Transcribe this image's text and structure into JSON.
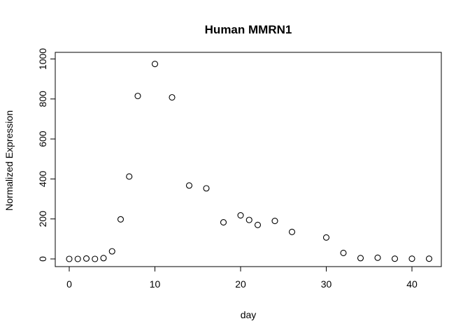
{
  "chart_data": {
    "type": "scatter",
    "title": "Human MMRN1",
    "xlabel": "day",
    "ylabel": "Normalized Expression",
    "xlim": [
      0,
      42
    ],
    "ylim": [
      0,
      1000
    ],
    "x_ticks": [
      0,
      10,
      20,
      30,
      40
    ],
    "y_ticks": [
      0,
      200,
      400,
      600,
      800,
      1000
    ],
    "marker": "open-circle",
    "grid": false,
    "x": [
      0,
      1,
      2,
      3,
      4,
      5,
      6,
      7,
      8,
      10,
      12,
      14,
      16,
      18,
      20,
      21,
      22,
      24,
      26,
      30,
      32,
      34,
      36,
      38,
      40,
      42
    ],
    "y": [
      0,
      0,
      2,
      0,
      4,
      38,
      198,
      412,
      815,
      975,
      808,
      367,
      353,
      183,
      218,
      195,
      170,
      190,
      135,
      107,
      30,
      4,
      6,
      1,
      1,
      1
    ]
  }
}
